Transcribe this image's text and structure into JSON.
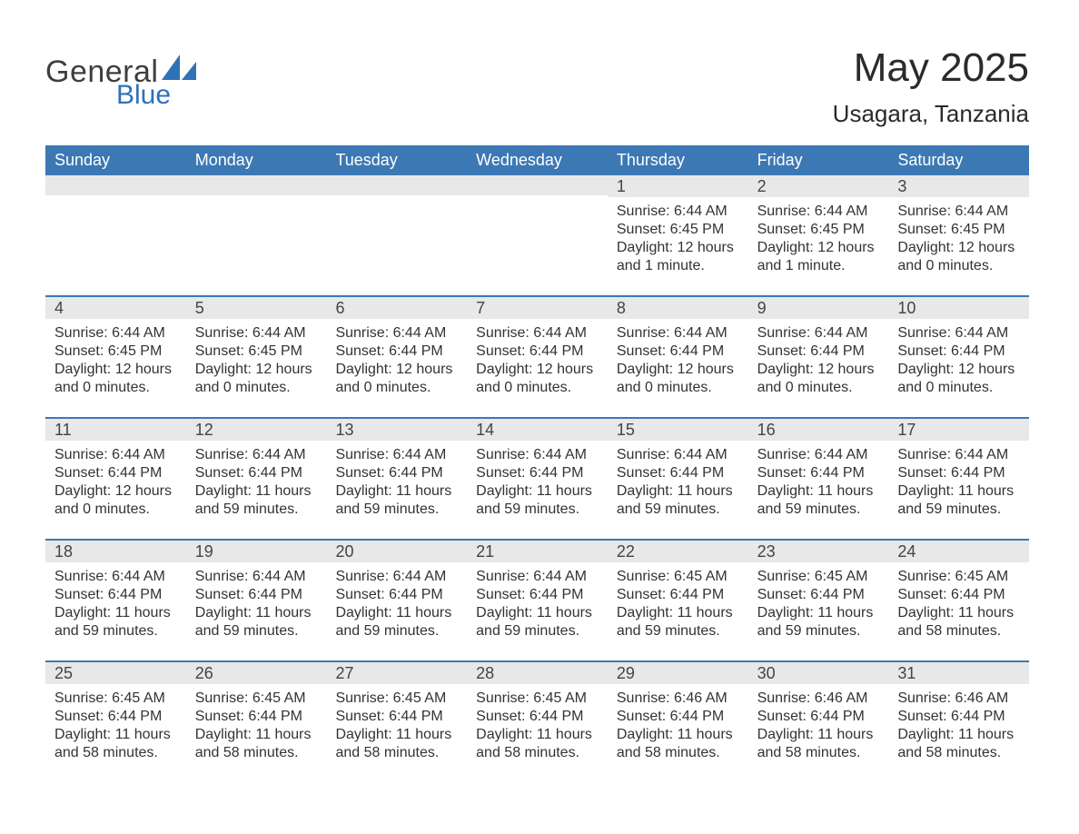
{
  "brand": {
    "text1": "General",
    "text2": "Blue",
    "accent_color": "#2f72b6"
  },
  "title": {
    "month": "May 2025",
    "location": "Usagara, Tanzania"
  },
  "colors": {
    "header_bg": "#3c78b4",
    "header_text": "#ffffff",
    "day_number_bg": "#e8e8e8",
    "week_divider": "#3c78b4",
    "body_text": "#333333",
    "background": "#ffffff"
  },
  "typography": {
    "title_fontsize": 44,
    "location_fontsize": 26,
    "header_fontsize": 18,
    "daynum_fontsize": 18,
    "body_fontsize": 16
  },
  "calendar": {
    "day_headers": [
      "Sunday",
      "Monday",
      "Tuesday",
      "Wednesday",
      "Thursday",
      "Friday",
      "Saturday"
    ],
    "weeks": [
      [
        null,
        null,
        null,
        null,
        {
          "num": "1",
          "sunrise": "6:44 AM",
          "sunset": "6:45 PM",
          "daylight": "12 hours and 1 minute."
        },
        {
          "num": "2",
          "sunrise": "6:44 AM",
          "sunset": "6:45 PM",
          "daylight": "12 hours and 1 minute."
        },
        {
          "num": "3",
          "sunrise": "6:44 AM",
          "sunset": "6:45 PM",
          "daylight": "12 hours and 0 minutes."
        }
      ],
      [
        {
          "num": "4",
          "sunrise": "6:44 AM",
          "sunset": "6:45 PM",
          "daylight": "12 hours and 0 minutes."
        },
        {
          "num": "5",
          "sunrise": "6:44 AM",
          "sunset": "6:45 PM",
          "daylight": "12 hours and 0 minutes."
        },
        {
          "num": "6",
          "sunrise": "6:44 AM",
          "sunset": "6:44 PM",
          "daylight": "12 hours and 0 minutes."
        },
        {
          "num": "7",
          "sunrise": "6:44 AM",
          "sunset": "6:44 PM",
          "daylight": "12 hours and 0 minutes."
        },
        {
          "num": "8",
          "sunrise": "6:44 AM",
          "sunset": "6:44 PM",
          "daylight": "12 hours and 0 minutes."
        },
        {
          "num": "9",
          "sunrise": "6:44 AM",
          "sunset": "6:44 PM",
          "daylight": "12 hours and 0 minutes."
        },
        {
          "num": "10",
          "sunrise": "6:44 AM",
          "sunset": "6:44 PM",
          "daylight": "12 hours and 0 minutes."
        }
      ],
      [
        {
          "num": "11",
          "sunrise": "6:44 AM",
          "sunset": "6:44 PM",
          "daylight": "12 hours and 0 minutes."
        },
        {
          "num": "12",
          "sunrise": "6:44 AM",
          "sunset": "6:44 PM",
          "daylight": "11 hours and 59 minutes."
        },
        {
          "num": "13",
          "sunrise": "6:44 AM",
          "sunset": "6:44 PM",
          "daylight": "11 hours and 59 minutes."
        },
        {
          "num": "14",
          "sunrise": "6:44 AM",
          "sunset": "6:44 PM",
          "daylight": "11 hours and 59 minutes."
        },
        {
          "num": "15",
          "sunrise": "6:44 AM",
          "sunset": "6:44 PM",
          "daylight": "11 hours and 59 minutes."
        },
        {
          "num": "16",
          "sunrise": "6:44 AM",
          "sunset": "6:44 PM",
          "daylight": "11 hours and 59 minutes."
        },
        {
          "num": "17",
          "sunrise": "6:44 AM",
          "sunset": "6:44 PM",
          "daylight": "11 hours and 59 minutes."
        }
      ],
      [
        {
          "num": "18",
          "sunrise": "6:44 AM",
          "sunset": "6:44 PM",
          "daylight": "11 hours and 59 minutes."
        },
        {
          "num": "19",
          "sunrise": "6:44 AM",
          "sunset": "6:44 PM",
          "daylight": "11 hours and 59 minutes."
        },
        {
          "num": "20",
          "sunrise": "6:44 AM",
          "sunset": "6:44 PM",
          "daylight": "11 hours and 59 minutes."
        },
        {
          "num": "21",
          "sunrise": "6:44 AM",
          "sunset": "6:44 PM",
          "daylight": "11 hours and 59 minutes."
        },
        {
          "num": "22",
          "sunrise": "6:45 AM",
          "sunset": "6:44 PM",
          "daylight": "11 hours and 59 minutes."
        },
        {
          "num": "23",
          "sunrise": "6:45 AM",
          "sunset": "6:44 PM",
          "daylight": "11 hours and 59 minutes."
        },
        {
          "num": "24",
          "sunrise": "6:45 AM",
          "sunset": "6:44 PM",
          "daylight": "11 hours and 58 minutes."
        }
      ],
      [
        {
          "num": "25",
          "sunrise": "6:45 AM",
          "sunset": "6:44 PM",
          "daylight": "11 hours and 58 minutes."
        },
        {
          "num": "26",
          "sunrise": "6:45 AM",
          "sunset": "6:44 PM",
          "daylight": "11 hours and 58 minutes."
        },
        {
          "num": "27",
          "sunrise": "6:45 AM",
          "sunset": "6:44 PM",
          "daylight": "11 hours and 58 minutes."
        },
        {
          "num": "28",
          "sunrise": "6:45 AM",
          "sunset": "6:44 PM",
          "daylight": "11 hours and 58 minutes."
        },
        {
          "num": "29",
          "sunrise": "6:46 AM",
          "sunset": "6:44 PM",
          "daylight": "11 hours and 58 minutes."
        },
        {
          "num": "30",
          "sunrise": "6:46 AM",
          "sunset": "6:44 PM",
          "daylight": "11 hours and 58 minutes."
        },
        {
          "num": "31",
          "sunrise": "6:46 AM",
          "sunset": "6:44 PM",
          "daylight": "11 hours and 58 minutes."
        }
      ]
    ]
  },
  "labels": {
    "sunrise": "Sunrise",
    "sunset": "Sunset",
    "daylight": "Daylight"
  }
}
